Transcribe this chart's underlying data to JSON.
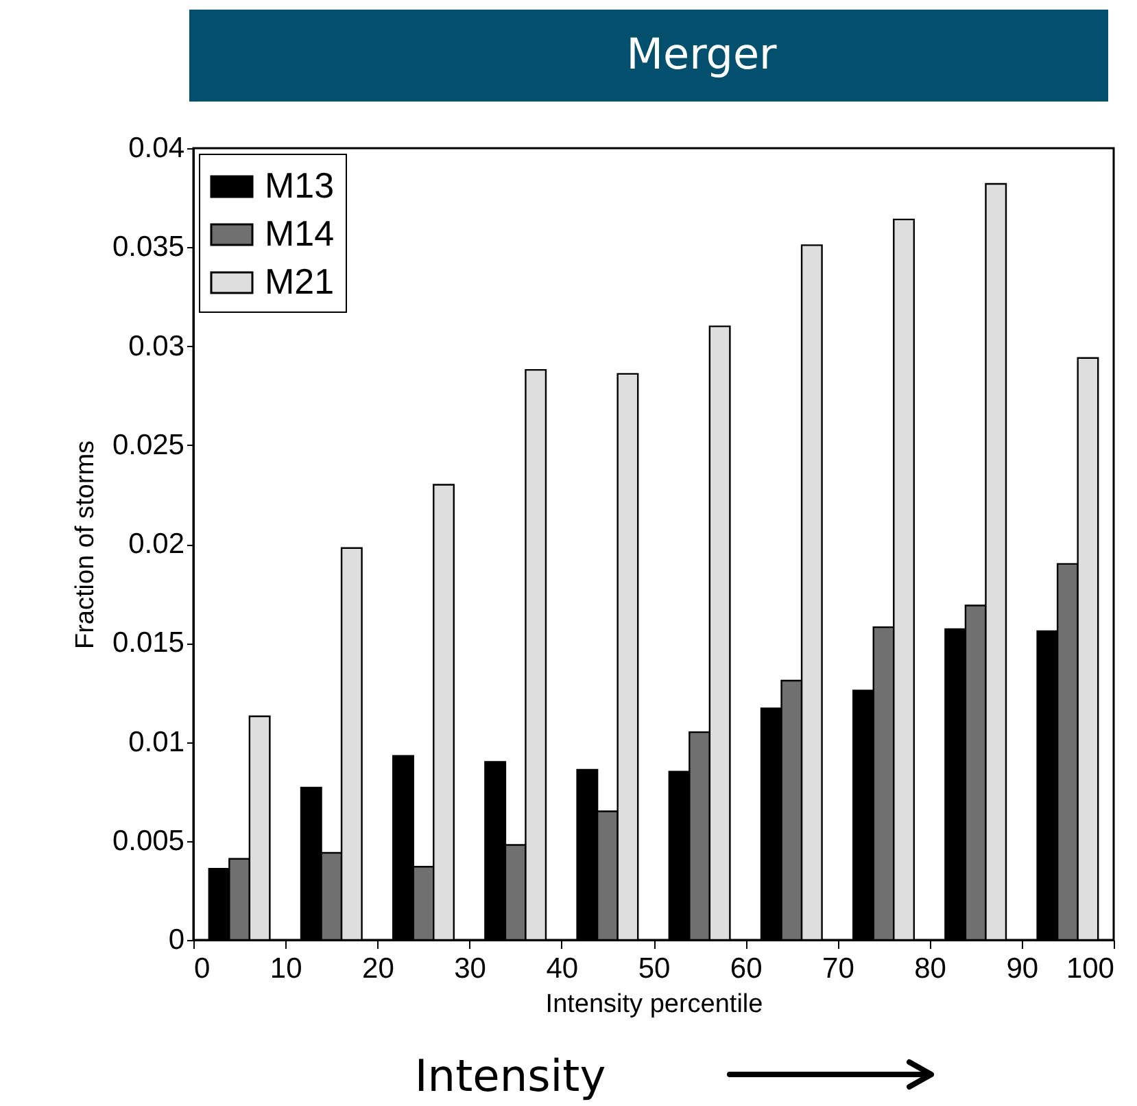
{
  "chart_data": {
    "type": "bar",
    "title": "Merger",
    "xlabel": "Intensity percentile",
    "ylabel": "Fraction of storms",
    "x": [
      5,
      15,
      25,
      35,
      45,
      55,
      65,
      75,
      85,
      95
    ],
    "series": [
      {
        "name": "M13",
        "color": "#000000",
        "values": [
          0.0036,
          0.0077,
          0.0093,
          0.009,
          0.0086,
          0.0085,
          0.0117,
          0.0126,
          0.0157,
          0.0156
        ]
      },
      {
        "name": "M14",
        "color": "#707070",
        "values": [
          0.0041,
          0.0044,
          0.0037,
          0.0048,
          0.0065,
          0.0105,
          0.0131,
          0.0158,
          0.0169,
          0.019
        ]
      },
      {
        "name": "M21",
        "color": "#dedede",
        "values": [
          0.0113,
          0.0198,
          0.023,
          0.0288,
          0.0286,
          0.031,
          0.0351,
          0.0364,
          0.0382,
          0.0294
        ]
      }
    ],
    "xlim": [
      0,
      100
    ],
    "xticks": [
      0,
      10,
      20,
      30,
      40,
      50,
      60,
      70,
      80,
      90,
      100
    ],
    "ylim": [
      0,
      0.04
    ],
    "yticks": [
      0,
      0.005,
      0.01,
      0.015,
      0.02,
      0.025,
      0.03,
      0.035,
      0.04
    ],
    "legend": "top left",
    "grid": false,
    "annotations": [
      "Intensity"
    ]
  }
}
